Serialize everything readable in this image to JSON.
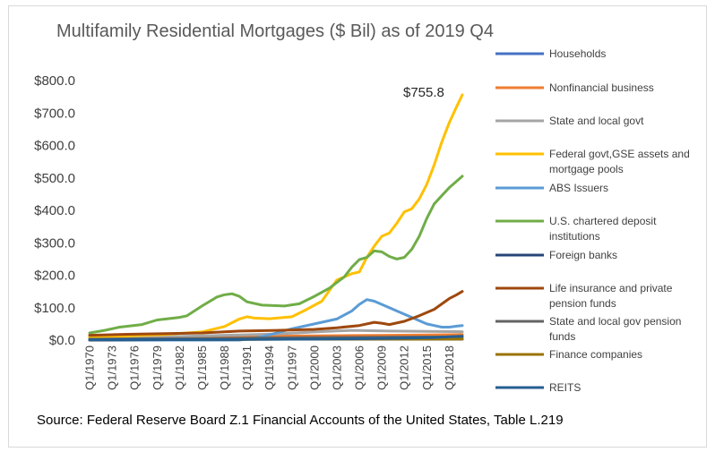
{
  "chart_data": {
    "type": "line",
    "title": "Multifamily Residential Mortgages ($ Bil) as of 2019 Q4",
    "source": "Source: Federal Reserve Board Z.1 Financial Accounts of the United States, Table L.219",
    "annotation": "$755.8",
    "ylim": [
      0,
      800
    ],
    "y_ticks": [
      "$0.0",
      "$100.0",
      "$200.0",
      "$300.0",
      "$400.0",
      "$500.0",
      "$600.0",
      "$700.0",
      "$800.0"
    ],
    "x_ticks": [
      "Q1/1970",
      "Q1/1973",
      "Q1/1976",
      "Q1/1979",
      "Q1/1982",
      "Q1/1985",
      "Q1/1988",
      "Q1/1991",
      "Q1/1994",
      "Q1/1997",
      "Q1/2000",
      "Q1/2003",
      "Q1/2006",
      "Q1/2009",
      "Q1/2012",
      "Q1/2015",
      "Q1/2018"
    ],
    "x_range": [
      1970.0,
      2019.75
    ],
    "series": [
      {
        "name": "Households",
        "color": "#4472C4",
        "points": [
          [
            1970,
            3
          ],
          [
            1980,
            3
          ],
          [
            1990,
            3
          ],
          [
            2000,
            3
          ],
          [
            2010,
            3
          ],
          [
            2019.75,
            3
          ]
        ]
      },
      {
        "name": "Nonfinancial business",
        "color": "#ED7D31",
        "points": [
          [
            1970,
            6
          ],
          [
            1980,
            9
          ],
          [
            1990,
            12
          ],
          [
            2000,
            13
          ],
          [
            2005,
            14
          ],
          [
            2010,
            15
          ],
          [
            2015,
            16
          ],
          [
            2019.75,
            17
          ]
        ]
      },
      {
        "name": "State and local govt",
        "color": "#A5A5A5",
        "points": [
          [
            1970,
            3
          ],
          [
            1980,
            10
          ],
          [
            1990,
            16
          ],
          [
            1995,
            19
          ],
          [
            2000,
            25
          ],
          [
            2005,
            30
          ],
          [
            2010,
            28
          ],
          [
            2015,
            27
          ],
          [
            2019.75,
            26
          ]
        ]
      },
      {
        "name": "Federal govt,GSE assets and mortgage pools",
        "color": "#FFC000",
        "points": [
          [
            1970,
            10
          ],
          [
            1975,
            13
          ],
          [
            1980,
            17
          ],
          [
            1985,
            25
          ],
          [
            1988,
            42
          ],
          [
            1990,
            65
          ],
          [
            1991,
            72
          ],
          [
            1992,
            68
          ],
          [
            1994,
            66
          ],
          [
            1997,
            72
          ],
          [
            1999,
            95
          ],
          [
            2001,
            120
          ],
          [
            2003,
            185
          ],
          [
            2005,
            205
          ],
          [
            2006,
            210
          ],
          [
            2007,
            255
          ],
          [
            2008,
            290
          ],
          [
            2009,
            320
          ],
          [
            2010,
            330
          ],
          [
            2011,
            360
          ],
          [
            2012,
            395
          ],
          [
            2013,
            405
          ],
          [
            2014,
            435
          ],
          [
            2015,
            480
          ],
          [
            2016,
            540
          ],
          [
            2017,
            610
          ],
          [
            2018,
            670
          ],
          [
            2019,
            720
          ],
          [
            2019.75,
            755.8
          ]
        ]
      },
      {
        "name": "ABS Issuers",
        "color": "#5B9BD5",
        "points": [
          [
            1970,
            0
          ],
          [
            1990,
            0
          ],
          [
            1993,
            10
          ],
          [
            1997,
            35
          ],
          [
            2000,
            50
          ],
          [
            2003,
            65
          ],
          [
            2005,
            90
          ],
          [
            2006,
            110
          ],
          [
            2007,
            125
          ],
          [
            2008,
            120
          ],
          [
            2009,
            110
          ],
          [
            2010,
            100
          ],
          [
            2011,
            90
          ],
          [
            2012,
            80
          ],
          [
            2013,
            70
          ],
          [
            2014,
            60
          ],
          [
            2015,
            50
          ],
          [
            2016,
            45
          ],
          [
            2017,
            40
          ],
          [
            2018,
            40
          ],
          [
            2019,
            43
          ],
          [
            2019.75,
            45
          ]
        ]
      },
      {
        "name": "U.S. chartered deposit institutions",
        "color": "#70AD47",
        "points": [
          [
            1970,
            22
          ],
          [
            1972,
            30
          ],
          [
            1974,
            40
          ],
          [
            1977,
            48
          ],
          [
            1979,
            62
          ],
          [
            1982,
            70
          ],
          [
            1983,
            75
          ],
          [
            1985,
            105
          ],
          [
            1987,
            133
          ],
          [
            1988,
            140
          ],
          [
            1989,
            143
          ],
          [
            1990,
            135
          ],
          [
            1991,
            118
          ],
          [
            1993,
            108
          ],
          [
            1996,
            105
          ],
          [
            1998,
            112
          ],
          [
            2000,
            135
          ],
          [
            2002,
            160
          ],
          [
            2004,
            195
          ],
          [
            2005,
            225
          ],
          [
            2006,
            248
          ],
          [
            2007,
            255
          ],
          [
            2008,
            275
          ],
          [
            2009,
            272
          ],
          [
            2010,
            258
          ],
          [
            2011,
            250
          ],
          [
            2012,
            255
          ],
          [
            2013,
            280
          ],
          [
            2014,
            320
          ],
          [
            2015,
            375
          ],
          [
            2016,
            420
          ],
          [
            2017,
            445
          ],
          [
            2018,
            470
          ],
          [
            2019,
            490
          ],
          [
            2019.75,
            505
          ]
        ]
      },
      {
        "name": "Foreign banks",
        "color": "#264478",
        "points": [
          [
            1970,
            0
          ],
          [
            1985,
            2
          ],
          [
            1995,
            3
          ],
          [
            2005,
            3
          ],
          [
            2019.75,
            3
          ]
        ]
      },
      {
        "name": "Life insurance and private pension funds",
        "color": "#9E480E",
        "points": [
          [
            1970,
            15
          ],
          [
            1975,
            18
          ],
          [
            1980,
            20
          ],
          [
            1985,
            22
          ],
          [
            1990,
            28
          ],
          [
            1995,
            30
          ],
          [
            2000,
            33
          ],
          [
            2003,
            38
          ],
          [
            2006,
            45
          ],
          [
            2008,
            55
          ],
          [
            2009,
            52
          ],
          [
            2010,
            48
          ],
          [
            2012,
            58
          ],
          [
            2014,
            75
          ],
          [
            2016,
            95
          ],
          [
            2018,
            128
          ],
          [
            2019,
            140
          ],
          [
            2019.75,
            150
          ]
        ]
      },
      {
        "name": "State and local gov pension funds",
        "color": "#636363",
        "points": [
          [
            1970,
            3
          ],
          [
            1985,
            5
          ],
          [
            2000,
            8
          ],
          [
            2010,
            9
          ],
          [
            2019.75,
            10
          ]
        ]
      },
      {
        "name": "Finance companies",
        "color": "#997300",
        "points": [
          [
            1970,
            1
          ],
          [
            1990,
            2
          ],
          [
            2000,
            3
          ],
          [
            2010,
            3
          ],
          [
            2019.75,
            3
          ]
        ]
      },
      {
        "name": "REITS",
        "color": "#255E91",
        "points": [
          [
            1970,
            1
          ],
          [
            1990,
            2
          ],
          [
            2000,
            3
          ],
          [
            2008,
            5
          ],
          [
            2012,
            6
          ],
          [
            2016,
            8
          ],
          [
            2019.75,
            12
          ]
        ]
      }
    ],
    "legend": [
      {
        "lines": [
          "Households"
        ]
      },
      {
        "lines": [
          "Nonfinancial business"
        ]
      },
      {
        "lines": [
          "State and local govt"
        ]
      },
      {
        "lines": [
          "Federal govt,GSE assets and",
          "mortgage pools"
        ]
      },
      {
        "lines": [
          "ABS Issuers"
        ]
      },
      {
        "lines": [
          "U.S. chartered deposit",
          "institutions"
        ]
      },
      {
        "lines": [
          "Foreign banks"
        ]
      },
      {
        "lines": [
          "Life insurance and private",
          "pension funds"
        ]
      },
      {
        "lines": [
          "State and local gov pension",
          "funds"
        ]
      },
      {
        "lines": [
          "Finance companies"
        ]
      },
      {
        "lines": [
          "REITS"
        ]
      }
    ],
    "legend_position": "right",
    "grid": false
  }
}
